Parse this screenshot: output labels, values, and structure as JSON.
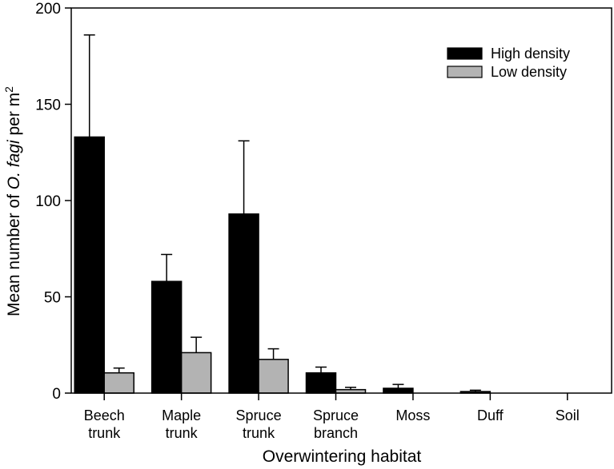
{
  "chart_data": {
    "type": "bar",
    "title": "",
    "xlabel": "Overwintering habitat",
    "ylabel": "Mean number of O. fagi per m²",
    "ylabel_parts": {
      "prefix": "Mean number of ",
      "italic": "O. fagi",
      "suffix": " per m",
      "superscript": "2"
    },
    "ylim": [
      0,
      200
    ],
    "yticks": [
      0,
      50,
      100,
      150,
      200
    ],
    "grid": false,
    "legend_position": "upper right",
    "categories": [
      "Beech trunk",
      "Maple trunk",
      "Spruce trunk",
      "Spruce branch",
      "Moss",
      "Duff",
      "Soil"
    ],
    "category_lines": [
      [
        "Beech",
        "trunk"
      ],
      [
        "Maple",
        "trunk"
      ],
      [
        "Spruce",
        "trunk"
      ],
      [
        "Spruce",
        "branch"
      ],
      [
        "Moss"
      ],
      [
        "Duff"
      ],
      [
        "Soil"
      ]
    ],
    "series": [
      {
        "name": "High density",
        "color": "#000000",
        "values": [
          133,
          58,
          93,
          10.5,
          2.5,
          0.8,
          0
        ],
        "error_upper": [
          186,
          72,
          131,
          13.5,
          4.5,
          1.5,
          0
        ]
      },
      {
        "name": "Low density",
        "color": "#b3b3b3",
        "values": [
          10.5,
          21,
          17.5,
          1.8,
          0,
          0,
          0
        ],
        "error_upper": [
          13,
          29,
          23,
          3,
          0,
          0,
          0
        ]
      }
    ]
  }
}
